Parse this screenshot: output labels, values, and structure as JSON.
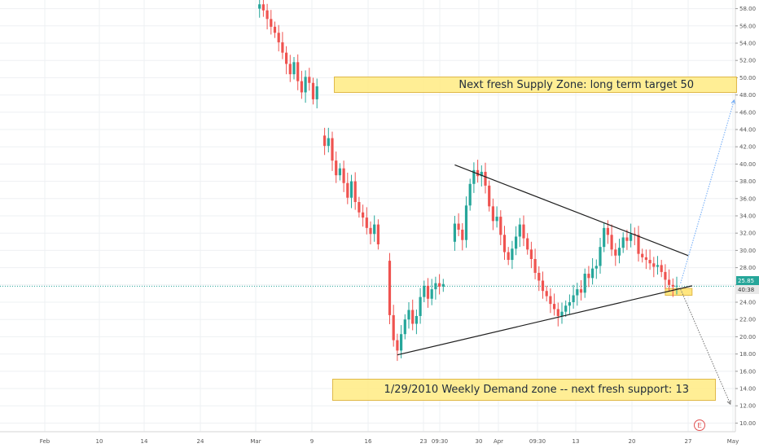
{
  "chart_data": {
    "type": "candlestick",
    "y_ticks": [
      "10.00",
      "12.00",
      "14.00",
      "16.00",
      "18.00",
      "20.00",
      "22.00",
      "24.00",
      "26.00",
      "28.00",
      "30.00",
      "32.00",
      "34.00",
      "36.00",
      "38.00",
      "40.00",
      "42.00",
      "44.00",
      "46.00",
      "48.00",
      "50.00",
      "52.00",
      "54.00",
      "56.00",
      "58.00"
    ],
    "ylim": [
      9,
      59
    ],
    "x_ticks": [
      "Feb",
      "10",
      "14",
      "24",
      "Mar",
      "9",
      "16",
      "23",
      "09:30",
      "30",
      "Apr",
      "09:30",
      "13",
      "20",
      "27",
      "May"
    ],
    "last_price": "25.85",
    "countdown": "40:38",
    "grid": true,
    "price_segments": [
      {
        "points": [
          [
            0,
            58.0
          ],
          [
            2,
            58.5
          ],
          [
            4,
            57.8
          ],
          [
            6,
            56.8
          ],
          [
            8,
            55.9
          ],
          [
            10,
            55.2
          ],
          [
            12,
            54.1
          ],
          [
            14,
            52.9
          ],
          [
            16,
            51.6
          ],
          [
            18,
            50.4
          ],
          [
            20,
            51.8
          ],
          [
            22,
            49.6
          ],
          [
            24,
            48.3
          ],
          [
            26,
            50.1
          ],
          [
            28,
            49.4
          ],
          [
            30,
            47.5
          ],
          [
            32,
            49.0
          ]
        ]
      },
      {
        "points": [
          [
            34,
            43.3
          ],
          [
            36,
            42.1
          ],
          [
            38,
            43.0
          ],
          [
            40,
            40.4
          ],
          [
            42,
            38.7
          ],
          [
            44,
            39.5
          ],
          [
            46,
            37.8
          ],
          [
            48,
            36.1
          ],
          [
            50,
            38.0
          ],
          [
            52,
            35.6
          ],
          [
            54,
            34.4
          ],
          [
            56,
            33.8
          ],
          [
            58,
            32.6
          ],
          [
            60,
            31.9
          ],
          [
            62,
            33.0
          ],
          [
            64,
            30.7
          ]
        ]
      },
      {
        "points": [
          [
            68,
            28.8
          ],
          [
            70,
            22.5
          ],
          [
            72,
            19.6
          ],
          [
            74,
            18.4
          ],
          [
            76,
            20.3
          ],
          [
            78,
            22.0
          ],
          [
            80,
            23.1
          ],
          [
            82,
            21.5
          ],
          [
            84,
            22.4
          ],
          [
            86,
            24.6
          ],
          [
            88,
            25.9
          ],
          [
            90,
            24.4
          ],
          [
            92,
            25.5
          ],
          [
            94,
            26.2
          ],
          [
            96,
            25.8
          ],
          [
            98,
            26.1
          ]
        ]
      },
      {
        "points": [
          [
            102,
            31.0
          ],
          [
            104,
            33.1
          ],
          [
            106,
            32.4
          ],
          [
            108,
            31.2
          ],
          [
            110,
            35.2
          ],
          [
            112,
            37.7
          ],
          [
            114,
            39.3
          ],
          [
            116,
            38.6
          ],
          [
            118,
            39.1
          ],
          [
            120,
            37.5
          ],
          [
            122,
            35.1
          ],
          [
            124,
            33.4
          ],
          [
            126,
            33.9
          ],
          [
            128,
            31.8
          ],
          [
            130,
            29.8
          ],
          [
            132,
            28.9
          ],
          [
            134,
            30.2
          ],
          [
            136,
            31.6
          ],
          [
            138,
            33.0
          ],
          [
            140,
            31.4
          ],
          [
            142,
            30.1
          ],
          [
            144,
            29.0
          ],
          [
            146,
            27.4
          ],
          [
            148,
            26.5
          ],
          [
            150,
            25.3
          ],
          [
            152,
            24.7
          ],
          [
            154,
            23.8
          ],
          [
            156,
            23.2
          ],
          [
            158,
            22.4
          ],
          [
            160,
            22.9
          ],
          [
            162,
            23.6
          ],
          [
            164,
            24.0
          ],
          [
            166,
            24.8
          ],
          [
            168,
            25.5
          ],
          [
            170,
            25.1
          ],
          [
            172,
            27.3
          ],
          [
            174,
            26.8
          ],
          [
            176,
            27.9
          ],
          [
            178,
            28.2
          ],
          [
            180,
            30.4
          ],
          [
            182,
            32.6
          ],
          [
            184,
            31.8
          ],
          [
            186,
            30.1
          ],
          [
            188,
            29.4
          ],
          [
            190,
            30.3
          ],
          [
            192,
            31.5
          ],
          [
            194,
            31.1
          ],
          [
            196,
            31.9
          ],
          [
            198,
            31.8
          ],
          [
            200,
            29.6
          ],
          [
            202,
            29.2
          ],
          [
            204,
            28.9
          ],
          [
            206,
            28.5
          ],
          [
            208,
            28.1
          ],
          [
            210,
            28.3
          ],
          [
            212,
            27.5
          ],
          [
            214,
            26.6
          ],
          [
            216,
            26.0
          ],
          [
            218,
            25.8
          ],
          [
            220,
            25.9
          ]
        ]
      }
    ],
    "trendlines": [
      {
        "name": "upper",
        "from": [
          104,
          39.9
        ],
        "to": [
          226,
          29.4
        ]
      },
      {
        "name": "lower",
        "from": [
          74,
          17.9
        ],
        "to": [
          228,
          25.9
        ]
      }
    ],
    "projections": [
      {
        "name": "bullish-path",
        "from": [
          222,
          26.2
        ],
        "to": [
          250,
          47.4
        ]
      },
      {
        "name": "bearish-path",
        "from": [
          222,
          25.5
        ],
        "to": [
          248,
          12.2
        ]
      }
    ],
    "zones": [
      {
        "name": "supply-zone",
        "x0": 34,
        "x1": 252,
        "y0": 48.1,
        "y1": 49.8
      },
      {
        "name": "pivot-zone",
        "x0": 214,
        "x1": 228,
        "y0": 24.8,
        "y1": 25.6
      }
    ],
    "annotations": {
      "supply_label": "Next fresh Supply Zone: long term target 50",
      "demand_label": "1/29/2010 Weekly Demand zone --  next fresh support:   13"
    },
    "earnings_marker": "E",
    "colors": {
      "up": "#26a69a",
      "down": "#ef5350",
      "zone": "#ffe680",
      "line": "#1e1e1e",
      "projection_up": "#6aa8f7",
      "projection_down": "#707070"
    }
  }
}
